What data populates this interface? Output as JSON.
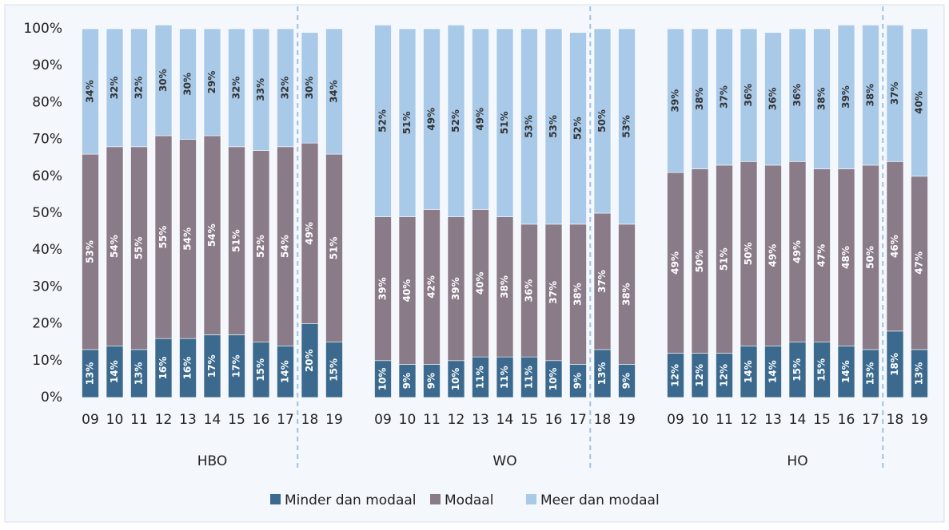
{
  "chart_data": {
    "type": "stacked_bar",
    "groups": [
      "HBO",
      "WO",
      "HO"
    ],
    "categories": [
      "09",
      "10",
      "11",
      "12",
      "13",
      "14",
      "15",
      "16",
      "17",
      "18",
      "19",
      "09",
      "10",
      "11",
      "12",
      "13",
      "14",
      "15",
      "16",
      "17",
      "18",
      "19",
      "09",
      "10",
      "11",
      "12",
      "13",
      "14",
      "15",
      "16",
      "17",
      "18",
      "19"
    ],
    "ylim": [
      0,
      100
    ],
    "yticks": [
      {
        "value": 0,
        "label": "0%"
      },
      {
        "value": 10,
        "label": "10%"
      },
      {
        "value": 20,
        "label": "20%"
      },
      {
        "value": 30,
        "label": "30%"
      },
      {
        "value": 40,
        "label": "40%"
      },
      {
        "value": 50,
        "label": "50%"
      },
      {
        "value": 60,
        "label": "60%"
      },
      {
        "value": 70,
        "label": "70%"
      },
      {
        "value": 80,
        "label": "80%"
      },
      {
        "value": 90,
        "label": "90%"
      },
      {
        "value": 100,
        "label": "100%"
      }
    ],
    "series": [
      {
        "name": "Minder dan modaal",
        "color": "#3b6a8e",
        "values": [
          13,
          14,
          13,
          16,
          16,
          17,
          17,
          15,
          14,
          20,
          15,
          10,
          9,
          9,
          10,
          11,
          11,
          11,
          10,
          9,
          13,
          9,
          12,
          12,
          12,
          14,
          14,
          15,
          15,
          14,
          13,
          18,
          13
        ],
        "value_labels": [
          "13%",
          "14%",
          "13%",
          "16%",
          "16%",
          "17%",
          "17%",
          "15%",
          "14%",
          "20%",
          "15%",
          "10%",
          "9%",
          "9%",
          "10%",
          "11%",
          "11%",
          "11%",
          "10%",
          "9%",
          "13%",
          "9%",
          "12%",
          "12%",
          "12%",
          "14%",
          "14%",
          "15%",
          "15%",
          "14%",
          "13%",
          "18%",
          "13%"
        ]
      },
      {
        "name": "Modaal",
        "color": "#8a7b89",
        "values": [
          53,
          54,
          55,
          55,
          54,
          54,
          51,
          52,
          54,
          49,
          51,
          39,
          40,
          42,
          39,
          40,
          38,
          36,
          37,
          38,
          37,
          38,
          49,
          50,
          51,
          50,
          49,
          49,
          47,
          48,
          50,
          46,
          47
        ],
        "value_labels": [
          "53%",
          "54%",
          "55%",
          "55%",
          "54%",
          "54%",
          "51%",
          "52%",
          "54%",
          "49%",
          "51%",
          "39%",
          "40%",
          "42%",
          "39%",
          "40%",
          "38%",
          "36%",
          "37%",
          "38%",
          "37%",
          "38%",
          "49%",
          "50%",
          "51%",
          "50%",
          "49%",
          "49%",
          "47%",
          "48%",
          "50%",
          "46%",
          "47%"
        ]
      },
      {
        "name": "Meer dan modaal",
        "color": "#a8c9e8",
        "values": [
          34,
          32,
          32,
          30,
          30,
          29,
          32,
          33,
          32,
          30,
          34,
          52,
          51,
          49,
          52,
          49,
          51,
          53,
          53,
          52,
          50,
          53,
          39,
          38,
          37,
          36,
          36,
          36,
          38,
          39,
          38,
          37,
          40
        ],
        "value_labels": [
          "34%",
          "32%",
          "32%",
          "30%",
          "30%",
          "29%",
          "32%",
          "33%",
          "32%",
          "30%",
          "34%",
          "52%",
          "51%",
          "49%",
          "52%",
          "49%",
          "51%",
          "53%",
          "53%",
          "52%",
          "50%",
          "53%",
          "39%",
          "38%",
          "37%",
          "36%",
          "36%",
          "36%",
          "38%",
          "39%",
          "38%",
          "37%",
          "40%"
        ]
      }
    ]
  }
}
